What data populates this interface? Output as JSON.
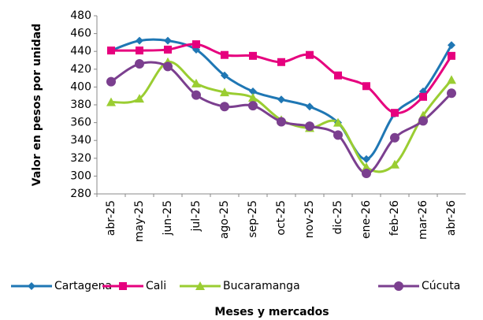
{
  "chart_data": {
    "type": "line",
    "x_label": "Meses y mercados",
    "y_label": "Valor en pesos por unidad",
    "categories": [
      "abr-25",
      "may-25",
      "jun-25",
      "jul-25",
      "ago-25",
      "sep-25",
      "oct-25",
      "nov-25",
      "dic-25",
      "ene-26",
      "feb-26",
      "mar-26",
      "abr-26"
    ],
    "series": [
      {
        "name": "Cartagena",
        "color": "#1f77b4",
        "marker": "diamond",
        "values": [
          441,
          452,
          452,
          442,
          413,
          395,
          386,
          378,
          360,
          319,
          370,
          395,
          447
        ]
      },
      {
        "name": "Cali",
        "color": "#e6007e",
        "marker": "square",
        "values": [
          441,
          441,
          442,
          448,
          436,
          435,
          428,
          436,
          413,
          401,
          371,
          389,
          435
        ]
      },
      {
        "name": "Bucaramanga",
        "color": "#9acd32",
        "marker": "triangle",
        "values": [
          383,
          387,
          428,
          404,
          394,
          388,
          363,
          354,
          360,
          310,
          313,
          368,
          408
        ]
      },
      {
        "name": "Cúcuta",
        "color": "#7b3f8f",
        "marker": "circle",
        "values": [
          406,
          426,
          423,
          391,
          378,
          379,
          361,
          356,
          346,
          303,
          343,
          362,
          393
        ]
      }
    ],
    "ylim": [
      280,
      480
    ],
    "yticks": [
      280,
      300,
      320,
      340,
      360,
      380,
      400,
      420,
      440,
      460,
      480
    ],
    "legend": "bottom"
  }
}
